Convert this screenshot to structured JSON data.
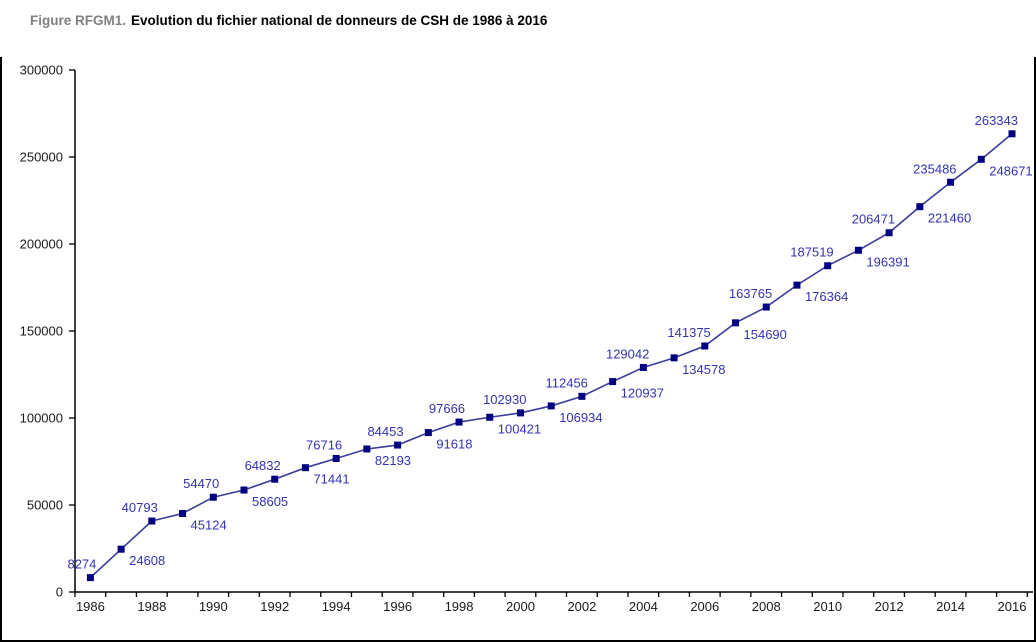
{
  "title": {
    "prefix": "Figure RFGM1.",
    "text": "Evolution du fichier national de donneurs de CSH de 1986 à 2016"
  },
  "chart_data": {
    "type": "line",
    "title": "Evolution du fichier national de donneurs de CSH de 1986 à 2016",
    "x": [
      1986,
      1987,
      1988,
      1989,
      1990,
      1991,
      1992,
      1993,
      1994,
      1995,
      1996,
      1997,
      1998,
      1999,
      2000,
      2001,
      2002,
      2003,
      2004,
      2005,
      2006,
      2007,
      2008,
      2009,
      2010,
      2011,
      2012,
      2013,
      2014,
      2015,
      2016
    ],
    "values": [
      8274,
      24608,
      40793,
      45124,
      54470,
      58605,
      64832,
      71441,
      76716,
      82193,
      84453,
      91618,
      97666,
      100421,
      102930,
      106934,
      112456,
      120937,
      129042,
      134578,
      141375,
      154690,
      163765,
      176364,
      187519,
      196391,
      206471,
      221460,
      235486,
      248671,
      263343
    ],
    "data_labels_shown": true,
    "data_label_position_pattern": "alternating above/below, starting above for 1986",
    "xlabel": "",
    "ylabel": "",
    "ylim": [
      0,
      300000
    ],
    "yticks": [
      0,
      50000,
      100000,
      150000,
      200000,
      250000,
      300000
    ],
    "xtick_labels": [
      1986,
      1988,
      1990,
      1992,
      1994,
      1996,
      1998,
      2000,
      2002,
      2004,
      2006,
      2008,
      2010,
      2012,
      2014,
      2016
    ],
    "grid": false,
    "legend": "none",
    "marker": "square",
    "colors": {
      "line": "#3b3b9b",
      "marker": "#000080",
      "data_label": "#3333b3",
      "axis": "#000000",
      "tick_label": "#1a1a1a",
      "title_prefix": "#808080",
      "title_text": "#000000",
      "frame": "#000000"
    }
  }
}
